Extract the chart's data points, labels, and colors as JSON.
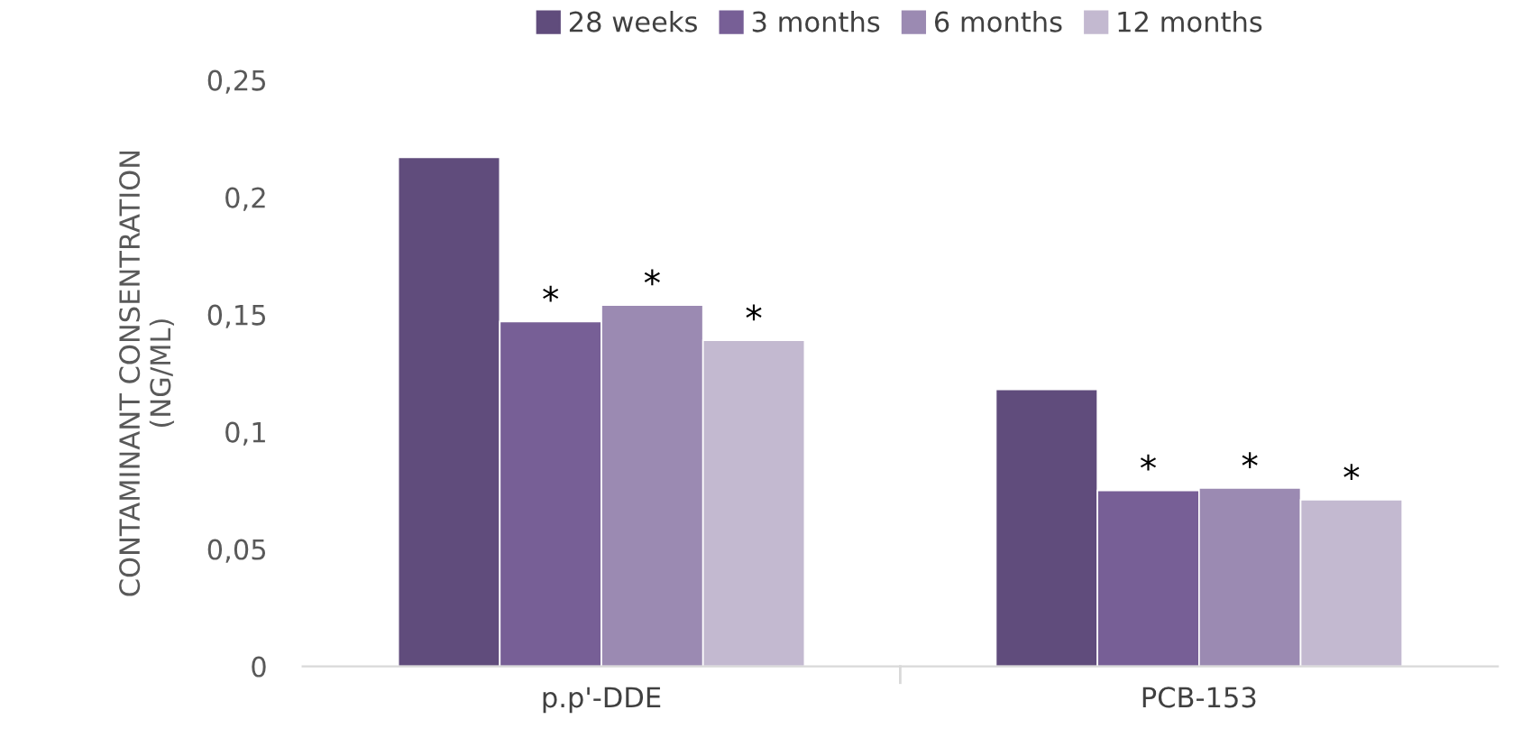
{
  "chart_data": {
    "type": "bar",
    "ylabel": "CONTAMINANT CONSENTRATION\n(NG/ML)",
    "categories": [
      "p.p'-DDE",
      "PCB-153"
    ],
    "series": [
      {
        "name": "28 weeks",
        "color": "#604c7c",
        "values": [
          0.217,
          0.118
        ]
      },
      {
        "name": "3 months",
        "color": "#775f96",
        "values": [
          0.147,
          0.075
        ],
        "value_labels": [
          "*",
          "*"
        ]
      },
      {
        "name": "6 months",
        "color": "#9b8ab2",
        "values": [
          0.154,
          0.076
        ],
        "value_labels": [
          "*",
          "*"
        ]
      },
      {
        "name": "12 months",
        "color": "#c3b9d0",
        "values": [
          0.139,
          0.071
        ],
        "value_labels": [
          "*",
          "*"
        ]
      }
    ],
    "ylim": [
      0,
      0.25
    ],
    "yticks": [
      {
        "value": 0,
        "label": "0"
      },
      {
        "value": 0.05,
        "label": "0,05"
      },
      {
        "value": 0.1,
        "label": "0,1"
      },
      {
        "value": 0.15,
        "label": "0,15"
      },
      {
        "value": 0.2,
        "label": "0,2"
      },
      {
        "value": 0.25,
        "label": "0,25"
      }
    ],
    "grid": false,
    "legend": "top"
  }
}
